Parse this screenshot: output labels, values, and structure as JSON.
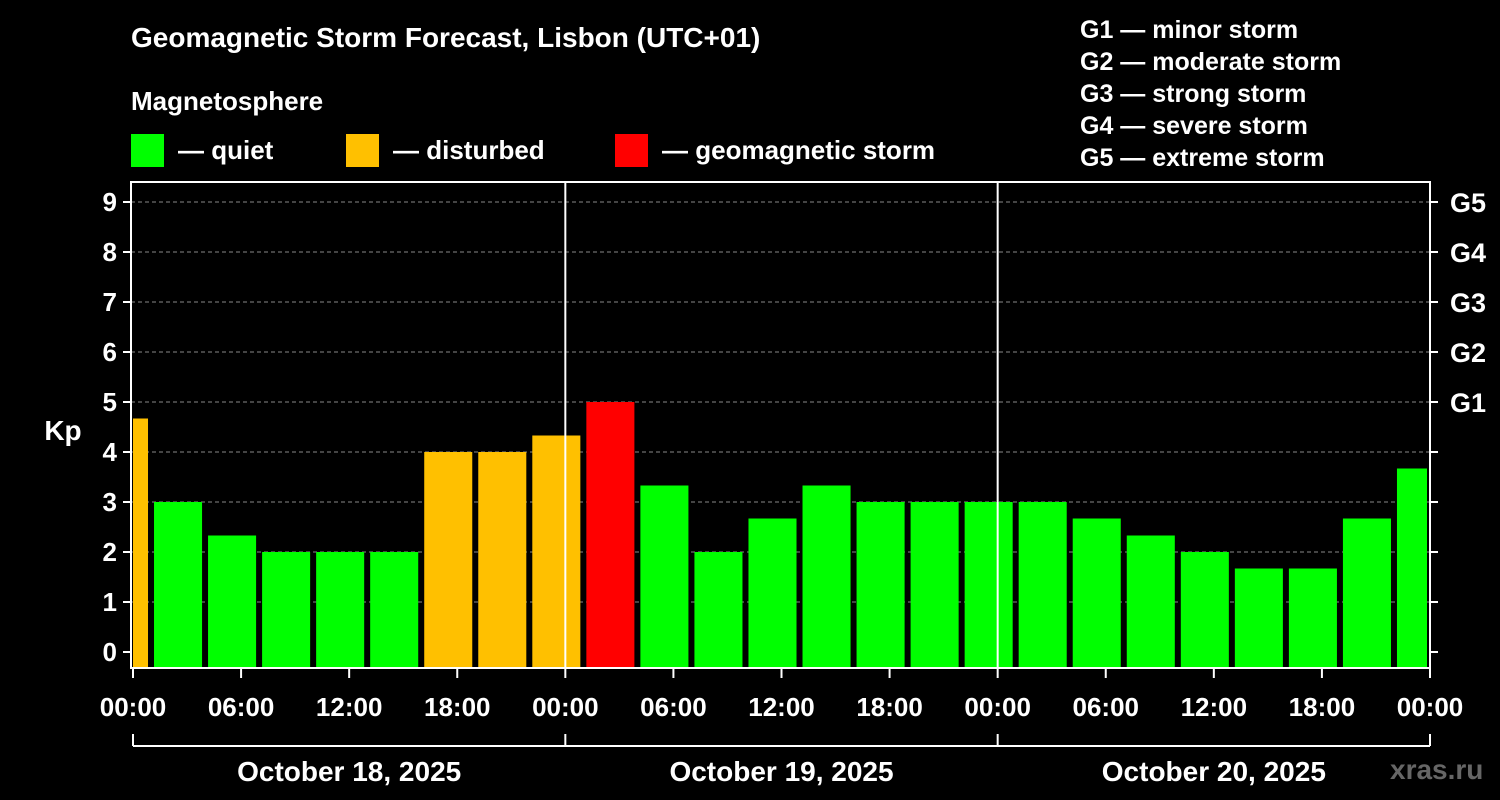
{
  "title": "Geomagnetic Storm Forecast, Lisbon (UTC+01)",
  "subtitle": "Magnetosphere",
  "legend": [
    {
      "label": "— quiet",
      "color": "#00ff00"
    },
    {
      "label": "— disturbed",
      "color": "#ffc000"
    },
    {
      "label": "— geomagnetic storm",
      "color": "#ff0000"
    }
  ],
  "storm_scale": [
    "G1 — minor storm",
    "G2 — moderate storm",
    "G3 — strong storm",
    "G4 — severe storm",
    "G5 — extreme storm"
  ],
  "watermark": "xras.ru",
  "chart_data": {
    "type": "bar",
    "ylabel": "Kp",
    "ylim": [
      0,
      9
    ],
    "yticks": [
      "0",
      "1",
      "2",
      "3",
      "4",
      "5",
      "6",
      "7",
      "8",
      "9"
    ],
    "right_ticks": [
      {
        "kp": 5,
        "label": "G1"
      },
      {
        "kp": 6,
        "label": "G2"
      },
      {
        "kp": 7,
        "label": "G3"
      },
      {
        "kp": 8,
        "label": "G4"
      },
      {
        "kp": 9,
        "label": "G5"
      }
    ],
    "xtick_labels": [
      "00:00",
      "06:00",
      "12:00",
      "18:00",
      "00:00",
      "06:00",
      "12:00",
      "18:00",
      "00:00",
      "06:00",
      "12:00",
      "18:00",
      "00:00"
    ],
    "days": [
      "October 18, 2025",
      "October 19, 2025",
      "October 20, 2025"
    ],
    "grid": true,
    "colors": {
      "quiet": "#00ff00",
      "disturbed": "#ffc000",
      "storm": "#ff0000"
    },
    "values": [
      4.67,
      3.0,
      2.33,
      2.0,
      2.0,
      2.0,
      4.0,
      4.0,
      4.33,
      5.0,
      3.33,
      2.0,
      2.67,
      3.33,
      3.0,
      3.0,
      3.0,
      3.0,
      2.67,
      2.33,
      2.0,
      1.67,
      1.67,
      2.67,
      3.67
    ],
    "levels": [
      "disturbed",
      "quiet",
      "quiet",
      "quiet",
      "quiet",
      "quiet",
      "disturbed",
      "disturbed",
      "disturbed",
      "storm",
      "quiet",
      "quiet",
      "quiet",
      "quiet",
      "quiet",
      "quiet",
      "quiet",
      "quiet",
      "quiet",
      "quiet",
      "quiet",
      "quiet",
      "quiet",
      "quiet",
      "quiet"
    ]
  }
}
